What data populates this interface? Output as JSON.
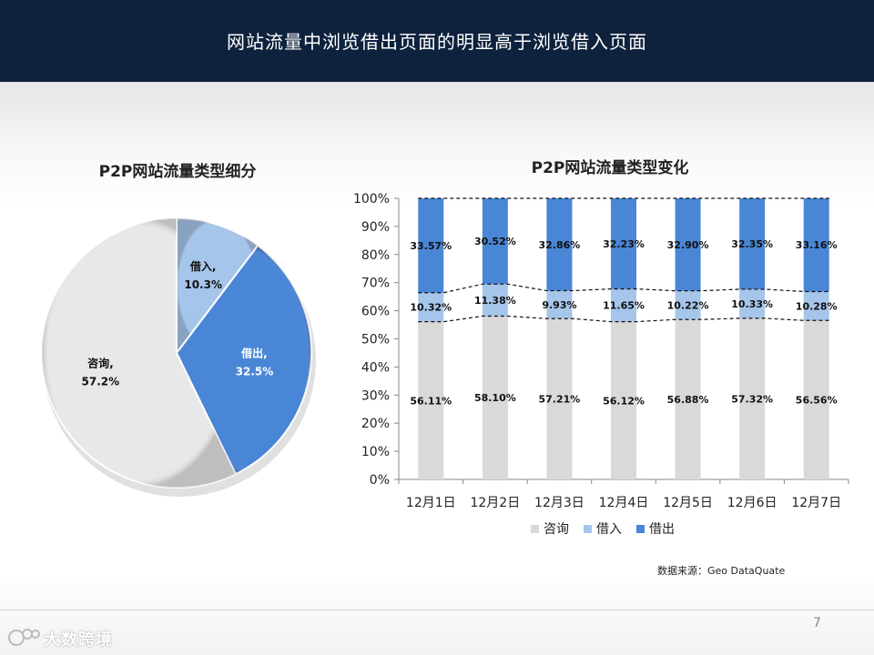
{
  "slide": {
    "title": "网站流量中浏览借出页面的明显高于浏览借入页面",
    "page_number": "7",
    "source_note": "数据来源：Geo  DataQuate",
    "logo_text": "大数跨境"
  },
  "colors": {
    "header_bg": "#0e223d",
    "consult": "#d9d9d9",
    "borrow_in": "#a6c5ea",
    "borrow_out": "#4a86d6"
  },
  "chart_data": [
    {
      "type": "pie",
      "title": "P2P网站流量类型细分",
      "slices": [
        {
          "name": "借入",
          "value": 10.3,
          "label": "10.3%",
          "color": "#a6c5ea"
        },
        {
          "name": "借出",
          "value": 32.5,
          "label": "32.5%",
          "color": "#4a86d6"
        },
        {
          "name": "咨询",
          "value": 57.2,
          "label": "57.2%",
          "color": "#e8e8e8"
        }
      ]
    },
    {
      "type": "bar",
      "stacked": true,
      "percent": true,
      "title": "P2P网站流量类型变化",
      "categories": [
        "12月1日",
        "12月2日",
        "12月3日",
        "12月4日",
        "12月5日",
        "12月6日",
        "12月7日"
      ],
      "ylim": [
        0,
        100
      ],
      "yticks": [
        "0%",
        "10%",
        "20%",
        "30%",
        "40%",
        "50%",
        "60%",
        "70%",
        "80%",
        "90%",
        "100%"
      ],
      "series": [
        {
          "name": "咨询",
          "color": "#d9d9d9",
          "values": [
            56.11,
            58.1,
            57.21,
            56.12,
            56.88,
            57.32,
            56.56
          ],
          "labels": [
            "56.11%",
            "58.10%",
            "57.21%",
            "56.12%",
            "56.88%",
            "57.32%",
            "56.56%"
          ]
        },
        {
          "name": "借入",
          "color": "#a6c5ea",
          "values": [
            10.32,
            11.38,
            9.93,
            11.65,
            10.22,
            10.33,
            10.28
          ],
          "labels": [
            "10.32%",
            "11.38%",
            "9.93%",
            "11.65%",
            "10.22%",
            "10.33%",
            "10.28%"
          ]
        },
        {
          "name": "借出",
          "color": "#4a86d6",
          "values": [
            33.57,
            30.52,
            32.86,
            32.23,
            32.9,
            32.35,
            33.16
          ],
          "labels": [
            "33.57%",
            "30.52%",
            "32.86%",
            "32.23%",
            "32.90%",
            "32.35%",
            "33.16%"
          ]
        }
      ],
      "legend": [
        "咨询",
        "借入",
        "借出"
      ],
      "legend_position": "bottom",
      "series_lines": "dashed"
    }
  ]
}
